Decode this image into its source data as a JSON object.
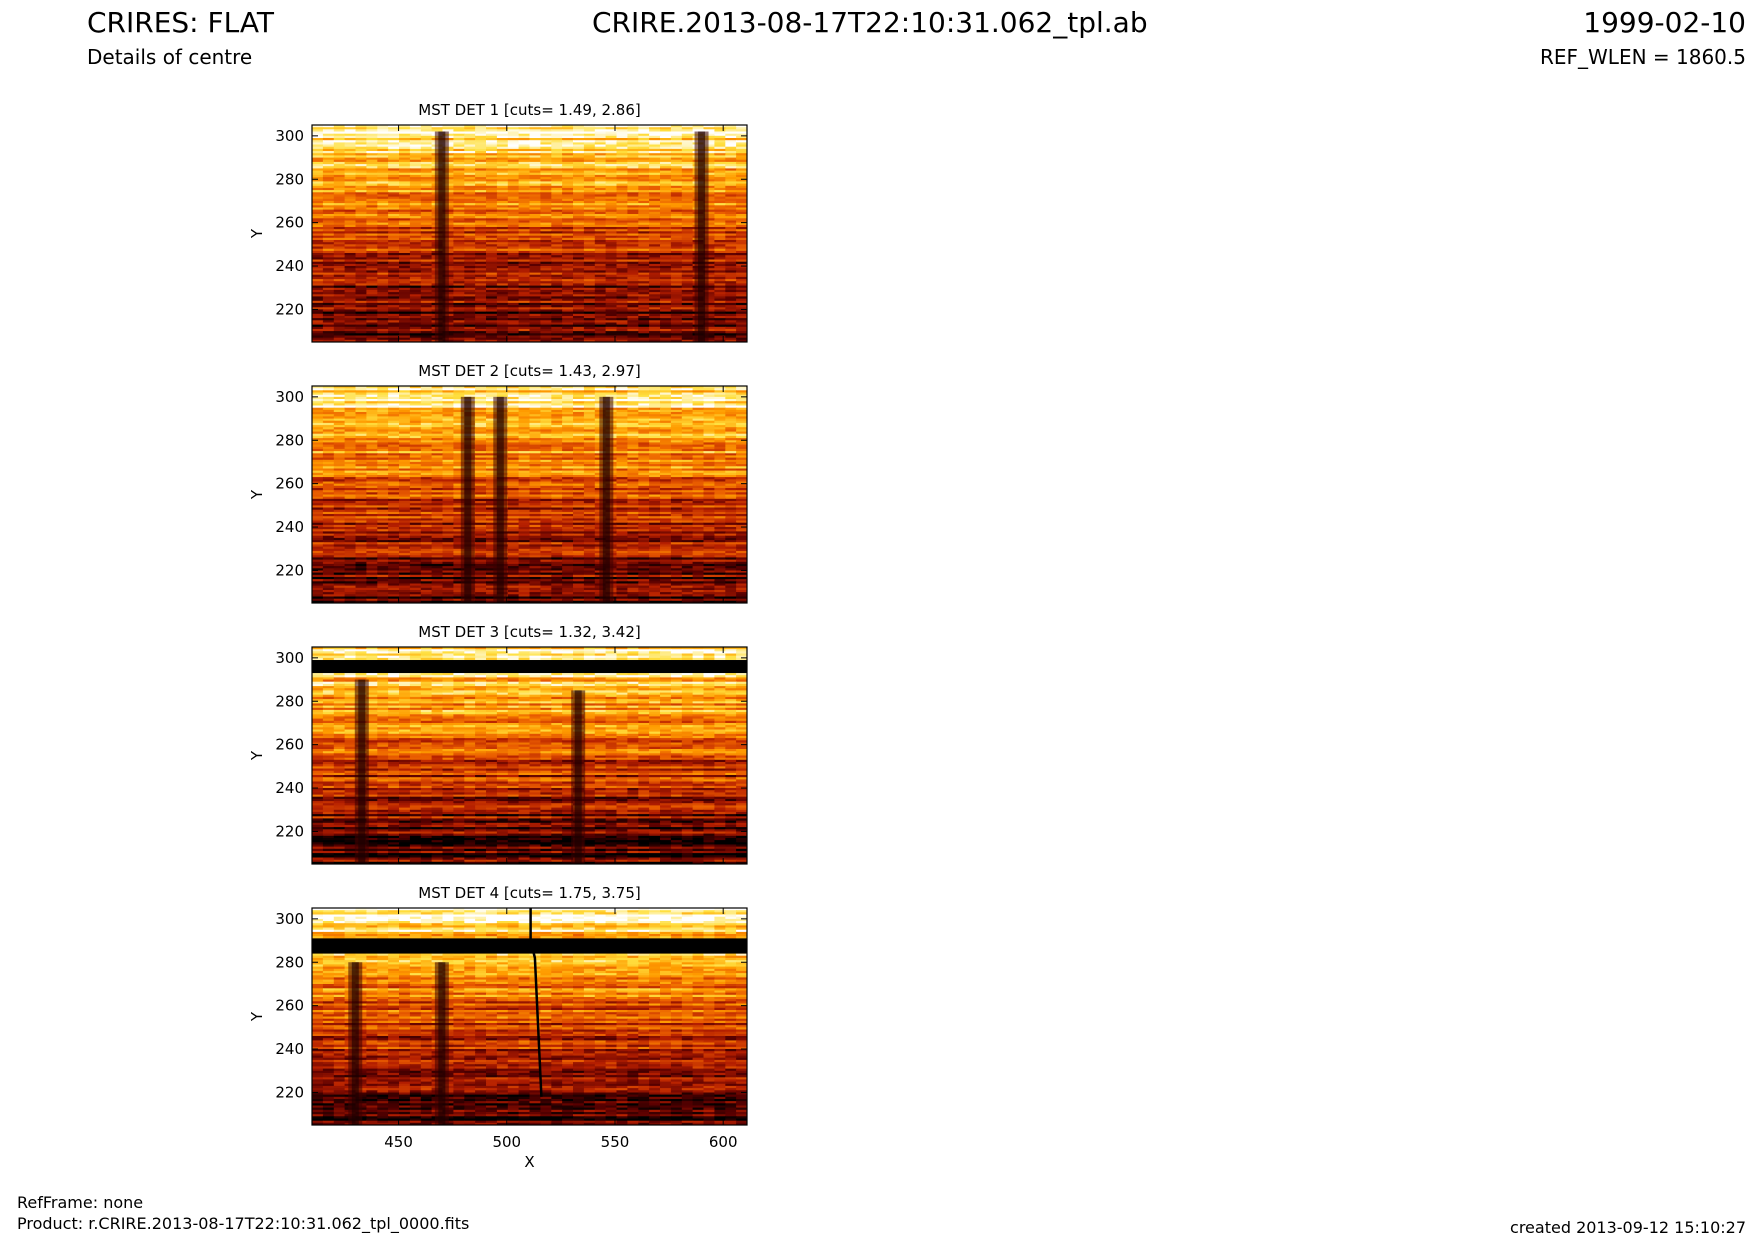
{
  "header": {
    "title_left": "CRIRES: FLAT",
    "subtitle_left": "Details of centre",
    "title_center": "CRIRE.2013-08-17T22:10:31.062_tpl.ab",
    "title_right": "1999-02-10",
    "subtitle_right": "REF_WLEN = 1860.5"
  },
  "footer": {
    "refframe": "RefFrame: none",
    "product": "Product: r.CRIRE.2013-08-17T22:10:31.062_tpl_0000.fits",
    "created": "created 2013-09-12 15:10:27"
  },
  "colors": {
    "colormap": [
      "#000000",
      "#5a0000",
      "#b41e00",
      "#e85a00",
      "#ff9c00",
      "#ffe040",
      "#ffffff"
    ]
  },
  "chart_data": [
    {
      "type": "heatmap",
      "title": "MST DET 1 [cuts= 1.49, 2.86]",
      "ylabel": "Y",
      "xlabel": "",
      "xlim": [
        410,
        611
      ],
      "ylim": [
        205,
        305
      ],
      "xticks": [],
      "yticks": [
        220,
        240,
        260,
        280,
        300
      ],
      "cuts": [
        1.49,
        2.86
      ],
      "dark_columns": [
        {
          "x": 470,
          "y_top": 302
        },
        {
          "x": 590,
          "y_top": 302
        }
      ]
    },
    {
      "type": "heatmap",
      "title": "MST DET 2 [cuts= 1.43, 2.97]",
      "ylabel": "Y",
      "xlabel": "",
      "xlim": [
        410,
        611
      ],
      "ylim": [
        205,
        305
      ],
      "xticks": [],
      "yticks": [
        220,
        240,
        260,
        280,
        300
      ],
      "cuts": [
        1.43,
        2.97
      ],
      "dark_columns": [
        {
          "x": 482,
          "y_top": 300
        },
        {
          "x": 497,
          "y_top": 300
        },
        {
          "x": 546,
          "y_top": 300
        }
      ]
    },
    {
      "type": "heatmap",
      "title": "MST DET 3 [cuts= 1.32, 3.42]",
      "ylabel": "Y",
      "xlabel": "",
      "xlim": [
        410,
        611
      ],
      "ylim": [
        205,
        305
      ],
      "xticks": [],
      "yticks": [
        220,
        240,
        260,
        280,
        300
      ],
      "cuts": [
        1.32,
        3.42
      ],
      "dark_columns": [
        {
          "x": 433,
          "y_top": 290
        },
        {
          "x": 533,
          "y_top": 285
        }
      ],
      "black_band": [
        293,
        299
      ]
    },
    {
      "type": "heatmap",
      "title": "MST DET 4 [cuts= 1.75, 3.75]",
      "ylabel": "Y",
      "xlabel": "X",
      "xlim": [
        410,
        611
      ],
      "ylim": [
        205,
        305
      ],
      "xticks": [
        450,
        500,
        550,
        600
      ],
      "yticks": [
        220,
        240,
        260,
        280,
        300
      ],
      "cuts": [
        1.75,
        3.75
      ],
      "dark_columns": [
        {
          "x": 430,
          "y_top": 280
        },
        {
          "x": 470,
          "y_top": 280
        }
      ],
      "black_band": [
        284,
        291
      ],
      "slanted_line": [
        [
          511,
          305
        ],
        [
          511,
          290
        ],
        [
          513,
          282
        ],
        [
          516,
          218
        ]
      ]
    }
  ]
}
